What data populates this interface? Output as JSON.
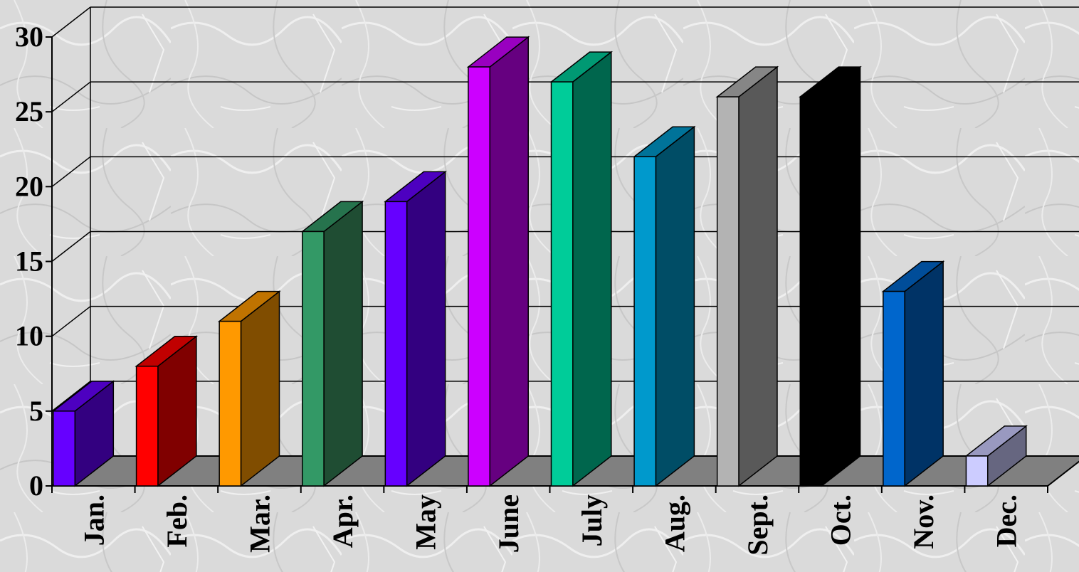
{
  "chart_data": {
    "type": "bar",
    "title": "",
    "xlabel": "",
    "ylabel": "",
    "ylim": [
      0,
      30
    ],
    "yticks": [
      0,
      5,
      10,
      15,
      20,
      25,
      30
    ],
    "grid": true,
    "style": "3d-column",
    "categories": [
      "Jan.",
      "Feb.",
      "Mar.",
      "Apr.",
      "May",
      "June",
      "July",
      "Aug.",
      "Sept.",
      "Oct.",
      "Nov.",
      "Dec."
    ],
    "values": [
      5,
      8,
      11,
      17,
      19,
      28,
      27,
      22,
      26,
      26,
      13,
      2
    ],
    "colors": [
      {
        "front": "#6600ff",
        "side": "#330080",
        "top": "#4d00c0"
      },
      {
        "front": "#ff0000",
        "side": "#800000",
        "top": "#c00000"
      },
      {
        "front": "#ff9900",
        "side": "#804d00",
        "top": "#c07300"
      },
      {
        "front": "#339966",
        "side": "#1f4d33",
        "top": "#26734d"
      },
      {
        "front": "#6600ff",
        "side": "#330080",
        "top": "#4d00c0"
      },
      {
        "front": "#cc00ff",
        "side": "#660080",
        "top": "#9900c0"
      },
      {
        "front": "#00cc99",
        "side": "#00664d",
        "top": "#009973"
      },
      {
        "front": "#0099cc",
        "side": "#004d66",
        "top": "#007399"
      },
      {
        "front": "#b3b3b3",
        "side": "#595959",
        "top": "#868686"
      },
      {
        "front": "#000000",
        "side": "#000000",
        "top": "#000000"
      },
      {
        "front": "#0066cc",
        "side": "#003366",
        "top": "#004d99"
      },
      {
        "front": "#ccccff",
        "side": "#666680",
        "top": "#9999c0"
      }
    ]
  }
}
